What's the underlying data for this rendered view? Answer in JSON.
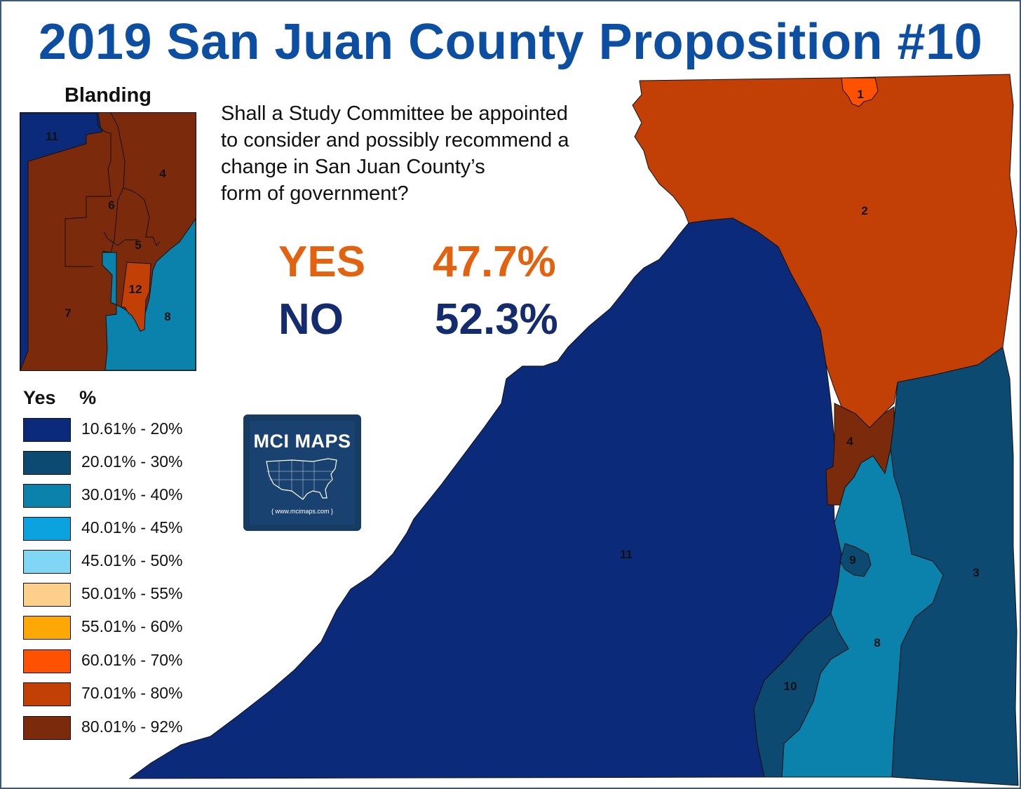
{
  "title": "2019 San Juan County Proposition #10",
  "question": {
    "lines": [
      "Shall a Study Committee be appointed",
      "to consider and possibly recommend a",
      "change in San Juan County’s",
      "form of government?"
    ]
  },
  "results": {
    "yes": {
      "label": "YES",
      "value": "47.7%",
      "color": "#e2620f"
    },
    "no": {
      "label": "NO",
      "value": "52.3%",
      "color": "#142c6e"
    }
  },
  "districts": [
    {
      "id": "1",
      "bin": "60.01% - 70%",
      "color": "#ff5200"
    },
    {
      "id": "2",
      "bin": "70.01% - 80%",
      "color": "#c23f06"
    },
    {
      "id": "3",
      "bin": "20.01% - 30%",
      "color": "#0c4a72"
    },
    {
      "id": "4",
      "bin": "80.01% - 92%",
      "color": "#7c2a0c"
    },
    {
      "id": "5",
      "bin": "80.01% - 92%",
      "color": "#7c2a0c"
    },
    {
      "id": "6",
      "bin": "80.01% - 92%",
      "color": "#7c2a0c"
    },
    {
      "id": "7",
      "bin": "80.01% - 92%",
      "color": "#7c2a0c"
    },
    {
      "id": "8",
      "bin": "30.01% - 40%",
      "color": "#0a82ab"
    },
    {
      "id": "9",
      "bin": "20.01% - 30%",
      "color": "#0c4a72"
    },
    {
      "id": "10",
      "bin": "20.01% - 30%",
      "color": "#0c4a72"
    },
    {
      "id": "11",
      "bin": "10.61% - 20%",
      "color": "#0b2a7a"
    },
    {
      "id": "12",
      "bin": "70.01% - 80%",
      "color": "#c23f06"
    }
  ],
  "inset": {
    "title": "Blanding"
  },
  "legend": {
    "header": [
      "Yes",
      "%"
    ],
    "items": [
      {
        "label": "10.61% - 20%",
        "color": "#0b2a7a"
      },
      {
        "label": "20.01% - 30%",
        "color": "#0c4a72"
      },
      {
        "label": "30.01% - 40%",
        "color": "#0a82ab"
      },
      {
        "label": "40.01% - 45%",
        "color": "#0aa3e0"
      },
      {
        "label": "45.01% - 50%",
        "color": "#7fd7f5"
      },
      {
        "label": "50.01% - 55%",
        "color": "#fcd08a"
      },
      {
        "label": "55.01% - 60%",
        "color": "#fda805"
      },
      {
        "label": "60.01% - 70%",
        "color": "#ff5200"
      },
      {
        "label": "70.01% - 80%",
        "color": "#c23f06"
      },
      {
        "label": "80.01% - 92%",
        "color": "#7c2a0c"
      }
    ]
  },
  "logo": {
    "title": "MCI MAPS",
    "url": "{ www.mcimaps.com }"
  }
}
